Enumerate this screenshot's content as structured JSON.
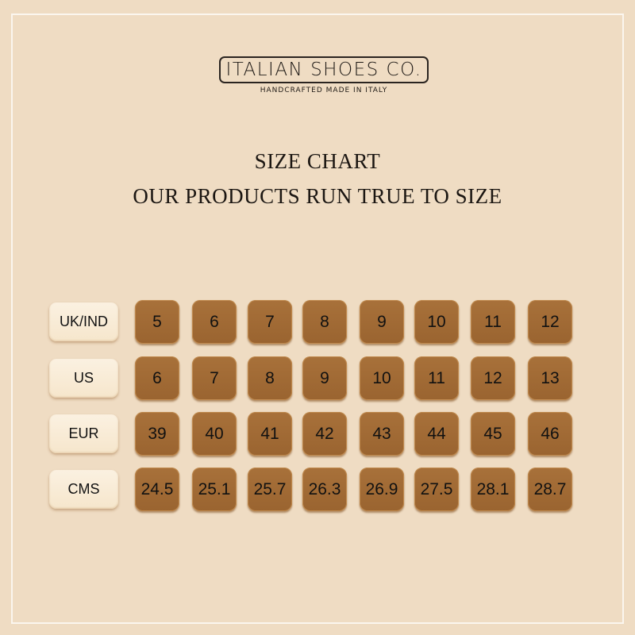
{
  "brand": {
    "name": "ITALIAN SHOES CO.",
    "tagline": "HANDCRAFTED MADE IN ITALY"
  },
  "heading": {
    "title": "SIZE CHART",
    "subtitle": "OUR PRODUCTS RUN TRUE TO SIZE"
  },
  "colors": {
    "background": "#efdcc3",
    "cell": "#a26b35",
    "label": "#f8ecd8"
  },
  "rows": [
    {
      "label": "UK/IND",
      "values": [
        "5",
        "6",
        "7",
        "8",
        "9",
        "10",
        "11",
        "12"
      ]
    },
    {
      "label": "US",
      "values": [
        "6",
        "7",
        "8",
        "9",
        "10",
        "11",
        "12",
        "13"
      ]
    },
    {
      "label": "EUR",
      "values": [
        "39",
        "40",
        "41",
        "42",
        "43",
        "44",
        "45",
        "46"
      ]
    },
    {
      "label": "CMS",
      "values": [
        "24.5",
        "25.1",
        "25.7",
        "26.3",
        "26.9",
        "27.5",
        "28.1",
        "28.7"
      ]
    }
  ]
}
